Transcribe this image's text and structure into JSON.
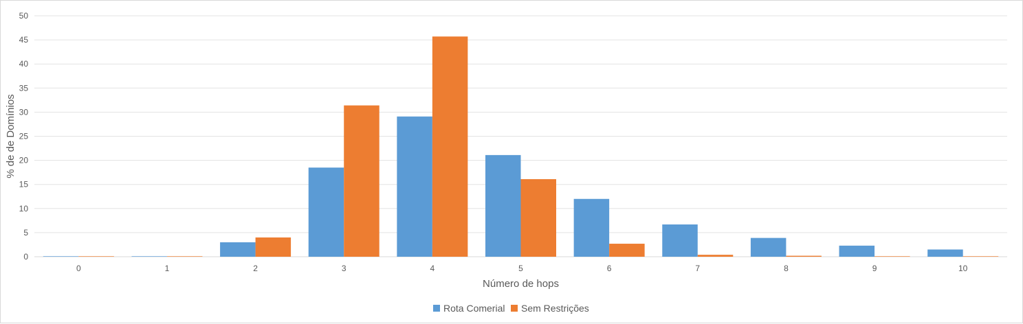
{
  "chart_data": {
    "type": "bar",
    "title": "",
    "xlabel": "Número de hops",
    "ylabel": "% de de Domínios",
    "categories": [
      "0",
      "1",
      "2",
      "3",
      "4",
      "5",
      "6",
      "7",
      "8",
      "9",
      "10"
    ],
    "series": [
      {
        "name": "Rota Comerial",
        "color": "#5b9bd5",
        "values": [
          0.1,
          0.1,
          3.0,
          18.5,
          29.1,
          21.1,
          12.0,
          6.7,
          3.9,
          2.3,
          1.5
        ]
      },
      {
        "name": "Sem Restrições",
        "color": "#ed7d31",
        "values": [
          0.1,
          0.1,
          4.0,
          31.4,
          45.7,
          16.1,
          2.7,
          0.4,
          0.2,
          0.1,
          0.1
        ]
      }
    ],
    "ylim": [
      0,
      50
    ],
    "yticks": [
      "0",
      "5",
      "10",
      "15",
      "20",
      "25",
      "30",
      "35",
      "40",
      "45",
      "50"
    ],
    "grid": true,
    "legend_position": "bottom"
  }
}
